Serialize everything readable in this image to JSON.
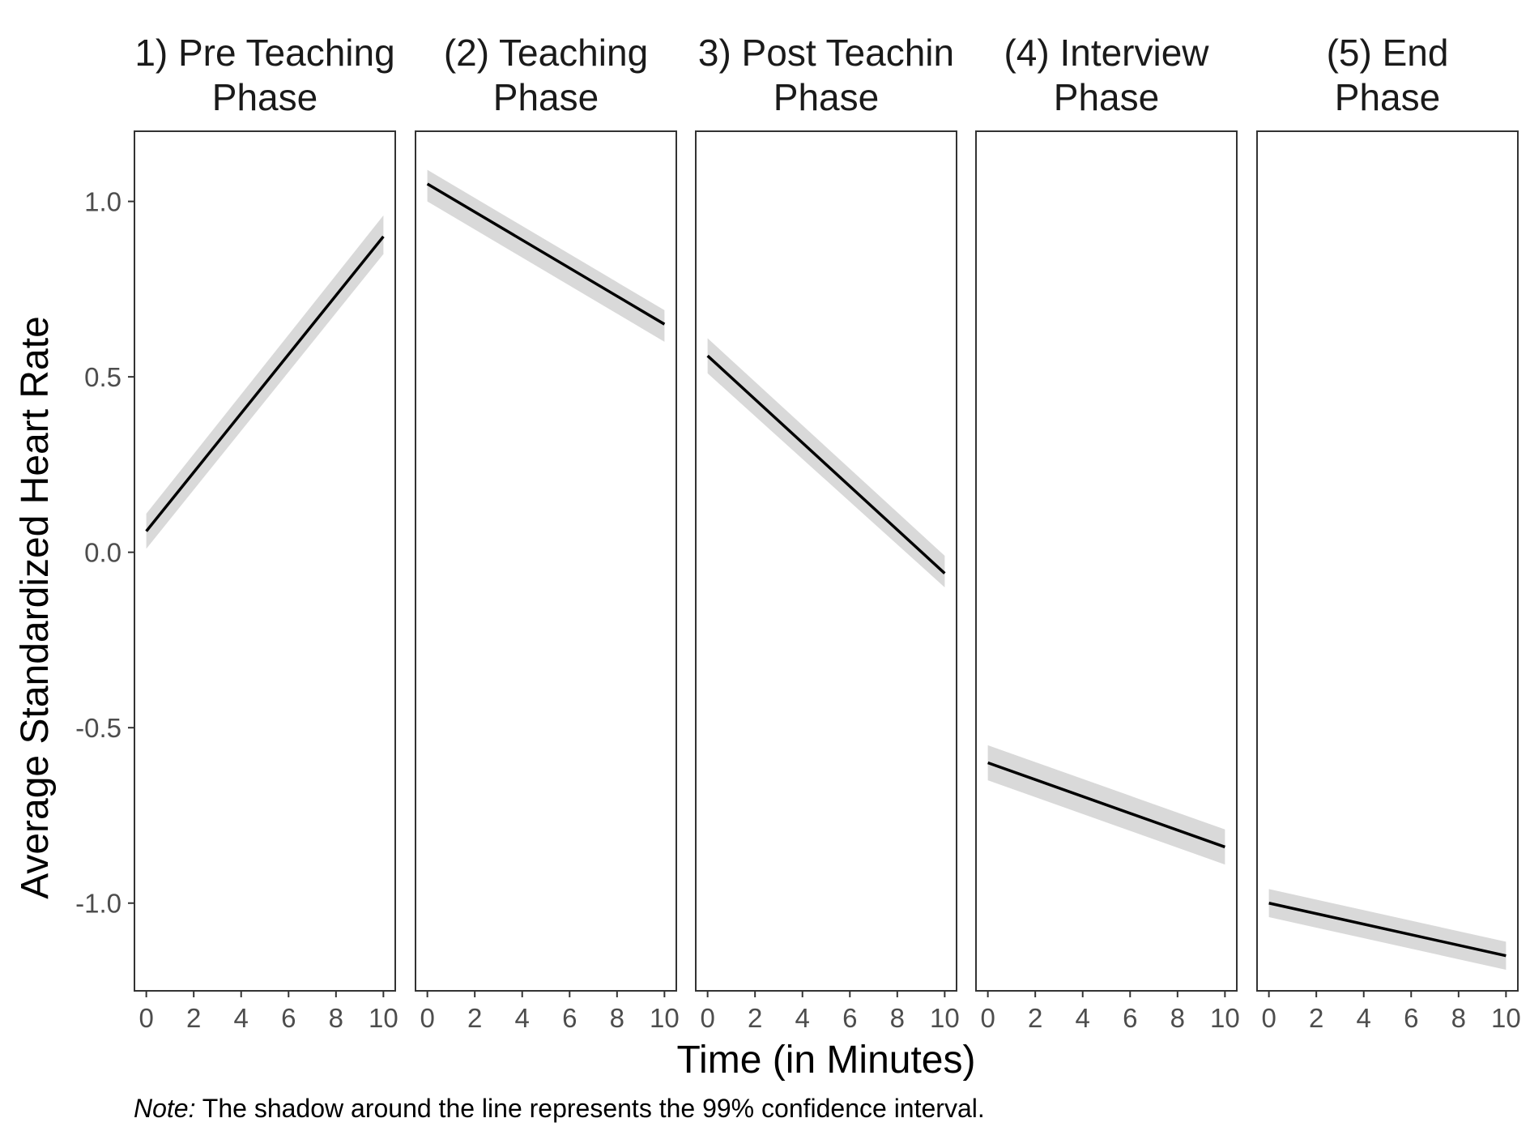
{
  "chart_data": {
    "type": "line",
    "facet_titles": [
      [
        "1) Pre Teaching",
        "Phase"
      ],
      [
        "(2) Teaching",
        "Phase"
      ],
      [
        "3) Post Teachin",
        "Phase"
      ],
      [
        "(4) Interview",
        "Phase"
      ],
      [
        "(5) End",
        "Phase"
      ]
    ],
    "xlabel": "Time (in Minutes)",
    "ylabel": "Average Standardized Heart Rate",
    "xlim": [
      -0.5,
      10.5
    ],
    "ylim": [
      -1.25,
      1.2
    ],
    "x_ticks": [
      0,
      2,
      4,
      6,
      8,
      10
    ],
    "x_tick_labels": [
      "0",
      "2",
      "4",
      "6",
      "8",
      "10"
    ],
    "y_ticks": [
      1.0,
      0.5,
      0.0,
      -0.5,
      -1.0
    ],
    "y_tick_labels": [
      "1.0",
      "0.5",
      "0.0",
      "-0.5",
      "-1.0"
    ],
    "grid": false,
    "line_color": "#000000",
    "ribbon_color": "#d9d9d9",
    "series": [
      {
        "x": [
          0,
          10
        ],
        "y": [
          0.06,
          0.9
        ],
        "ci_lower": [
          0.01,
          0.85
        ],
        "ci_upper": [
          0.11,
          0.96
        ]
      },
      {
        "x": [
          0,
          10
        ],
        "y": [
          1.05,
          0.65
        ],
        "ci_lower": [
          1.0,
          0.6
        ],
        "ci_upper": [
          1.09,
          0.69
        ]
      },
      {
        "x": [
          0,
          10
        ],
        "y": [
          0.56,
          -0.06
        ],
        "ci_lower": [
          0.51,
          -0.1
        ],
        "ci_upper": [
          0.61,
          -0.01
        ]
      },
      {
        "x": [
          0,
          10
        ],
        "y": [
          -0.6,
          -0.84
        ],
        "ci_lower": [
          -0.65,
          -0.89
        ],
        "ci_upper": [
          -0.55,
          -0.79
        ]
      },
      {
        "x": [
          0,
          10
        ],
        "y": [
          -1.0,
          -1.15
        ],
        "ci_lower": [
          -1.04,
          -1.19
        ],
        "ci_upper": [
          -0.96,
          -1.11
        ]
      }
    ]
  },
  "note": {
    "label": "Note:",
    "text": " The shadow around the line represents the 99% confidence interval."
  }
}
